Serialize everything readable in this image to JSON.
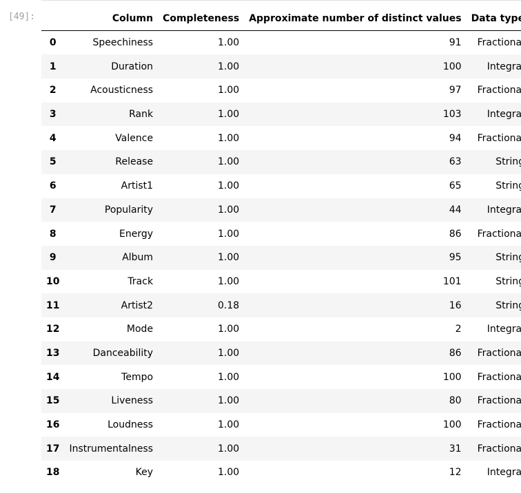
{
  "cell": {
    "prompt": "[49]:"
  },
  "table": {
    "headers": [
      "",
      "Column",
      "Completeness",
      "Approximate number of distinct values",
      "Data type"
    ],
    "rows": [
      {
        "index": "0",
        "column": "Speechiness",
        "completeness": "1.00",
        "distinct": "91",
        "dtype": "Fractional"
      },
      {
        "index": "1",
        "column": "Duration",
        "completeness": "1.00",
        "distinct": "100",
        "dtype": "Integral"
      },
      {
        "index": "2",
        "column": "Acousticness",
        "completeness": "1.00",
        "distinct": "97",
        "dtype": "Fractional"
      },
      {
        "index": "3",
        "column": "Rank",
        "completeness": "1.00",
        "distinct": "103",
        "dtype": "Integral"
      },
      {
        "index": "4",
        "column": "Valence",
        "completeness": "1.00",
        "distinct": "94",
        "dtype": "Fractional"
      },
      {
        "index": "5",
        "column": "Release",
        "completeness": "1.00",
        "distinct": "63",
        "dtype": "String"
      },
      {
        "index": "6",
        "column": "Artist1",
        "completeness": "1.00",
        "distinct": "65",
        "dtype": "String"
      },
      {
        "index": "7",
        "column": "Popularity",
        "completeness": "1.00",
        "distinct": "44",
        "dtype": "Integral"
      },
      {
        "index": "8",
        "column": "Energy",
        "completeness": "1.00",
        "distinct": "86",
        "dtype": "Fractional"
      },
      {
        "index": "9",
        "column": "Album",
        "completeness": "1.00",
        "distinct": "95",
        "dtype": "String"
      },
      {
        "index": "10",
        "column": "Track",
        "completeness": "1.00",
        "distinct": "101",
        "dtype": "String"
      },
      {
        "index": "11",
        "column": "Artist2",
        "completeness": "0.18",
        "distinct": "16",
        "dtype": "String"
      },
      {
        "index": "12",
        "column": "Mode",
        "completeness": "1.00",
        "distinct": "2",
        "dtype": "Integral"
      },
      {
        "index": "13",
        "column": "Danceability",
        "completeness": "1.00",
        "distinct": "86",
        "dtype": "Fractional"
      },
      {
        "index": "14",
        "column": "Tempo",
        "completeness": "1.00",
        "distinct": "100",
        "dtype": "Fractional"
      },
      {
        "index": "15",
        "column": "Liveness",
        "completeness": "1.00",
        "distinct": "80",
        "dtype": "Fractional"
      },
      {
        "index": "16",
        "column": "Loudness",
        "completeness": "1.00",
        "distinct": "100",
        "dtype": "Fractional"
      },
      {
        "index": "17",
        "column": "Instrumentalness",
        "completeness": "1.00",
        "distinct": "31",
        "dtype": "Fractional"
      },
      {
        "index": "18",
        "column": "Key",
        "completeness": "1.00",
        "distinct": "12",
        "dtype": "Integral"
      }
    ]
  }
}
